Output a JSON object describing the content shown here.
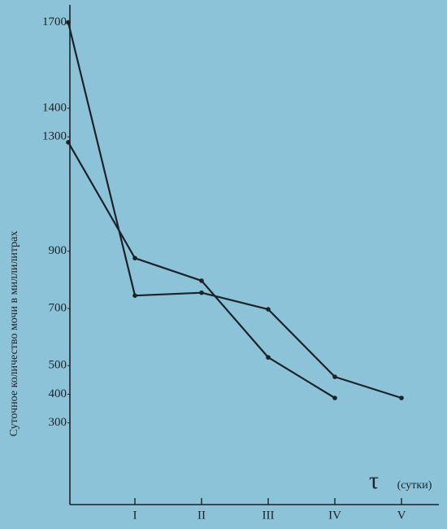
{
  "chart_data": {
    "type": "line",
    "y_label": "Суточное количество мочи в миллилитрах",
    "x_symbol": "τ",
    "x_label": "(сутки)",
    "categories": [
      null,
      "I",
      "II",
      "III",
      "IV",
      "V"
    ],
    "series": [
      {
        "color": "#1b2228",
        "values": [
          1700,
          745,
          755,
          697,
          461,
          387
        ]
      },
      {
        "color": "#1b2228",
        "values": [
          1281,
          876,
          797,
          529,
          387,
          null
        ]
      }
    ],
    "ylim": [
      0,
      1760
    ],
    "yticks": [
      300,
      400,
      500,
      700,
      900,
      1300,
      1400,
      1700
    ],
    "grid": false
  }
}
